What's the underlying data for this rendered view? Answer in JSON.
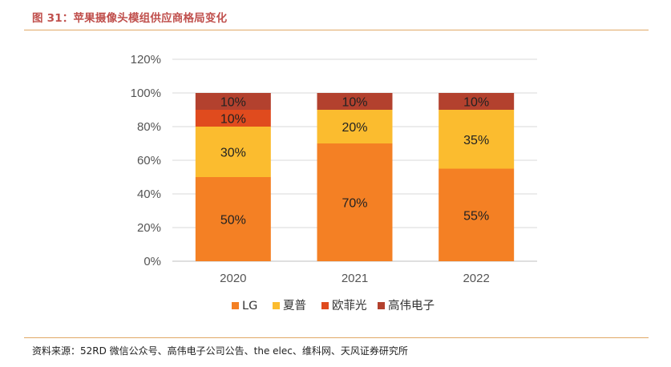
{
  "title": "图 31：苹果摄像头模组供应商格局变化",
  "source": "资料来源：52RD 微信公众号、高伟电子公司公告、the elec、维科网、天风证券研究所",
  "chart_data": {
    "type": "bar",
    "stacked": true,
    "categories": [
      "2020",
      "2021",
      "2022"
    ],
    "series": [
      {
        "name": "LG",
        "color": "#f48024",
        "values": [
          50,
          70,
          55
        ],
        "labels": [
          "50%",
          "70%",
          "55%"
        ]
      },
      {
        "name": "夏普",
        "color": "#fbbc2f",
        "values": [
          30,
          20,
          35
        ],
        "labels": [
          "30%",
          "20%",
          "35%"
        ]
      },
      {
        "name": "欧菲光",
        "color": "#e04b1e",
        "values": [
          10,
          0,
          0
        ],
        "labels": [
          "10%",
          "",
          ""
        ]
      },
      {
        "name": "高伟电子",
        "color": "#b3412e",
        "values": [
          10,
          10,
          10
        ],
        "labels": [
          "10%",
          "10%",
          "10%"
        ]
      }
    ],
    "ylim": [
      0,
      120
    ],
    "yticks": [
      0,
      20,
      40,
      60,
      80,
      100,
      120
    ],
    "ytick_labels": [
      "0%",
      "20%",
      "40%",
      "60%",
      "80%",
      "100%",
      "120%"
    ],
    "grid": true,
    "legend": "bottom"
  }
}
